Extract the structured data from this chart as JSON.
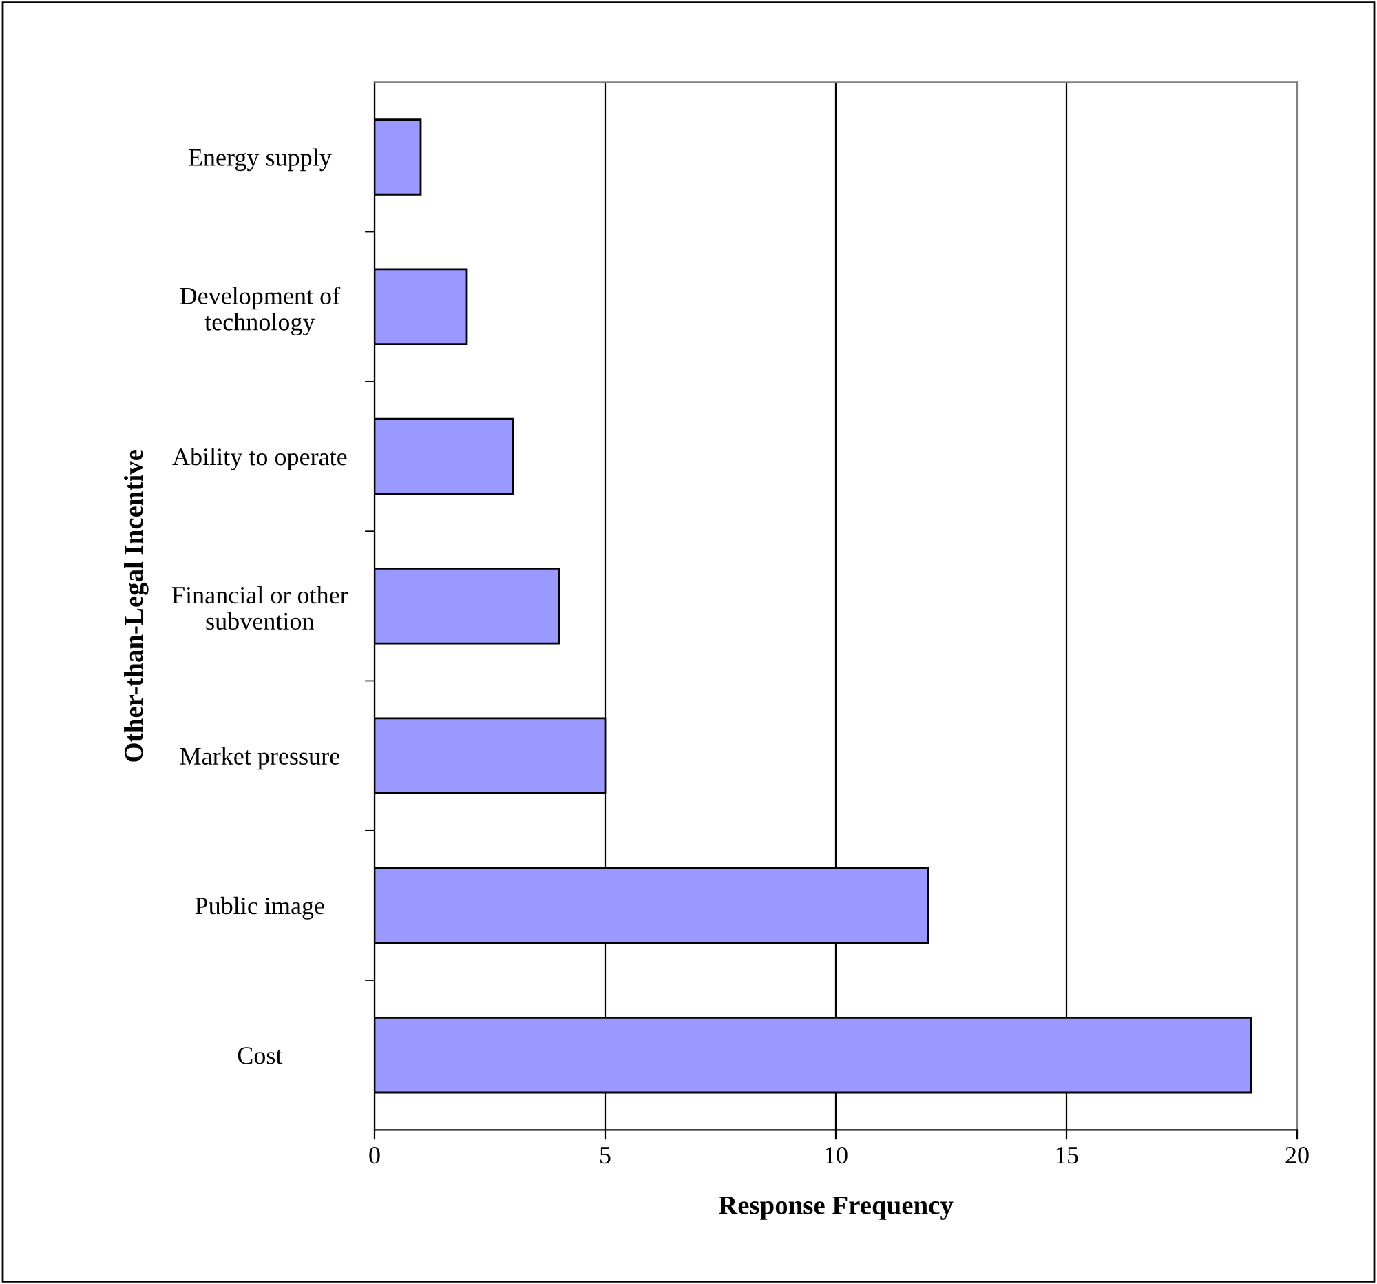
{
  "chart_data": {
    "type": "bar",
    "orientation": "horizontal",
    "categories": [
      "Energy supply",
      "Development of\ntechnology",
      "Ability to operate",
      "Financial or other\nsubvention",
      "Market pressure",
      "Public image",
      "Cost"
    ],
    "values": [
      1,
      2,
      3,
      4,
      5,
      12,
      19
    ],
    "color": "#9999ff",
    "xlabel": "Response Frequency",
    "ylabel": "Other-than-Legal Incentive",
    "xlim": [
      0,
      20
    ],
    "xticks": [
      0,
      5,
      10,
      15,
      20
    ],
    "grid": "x",
    "legend": false
  }
}
